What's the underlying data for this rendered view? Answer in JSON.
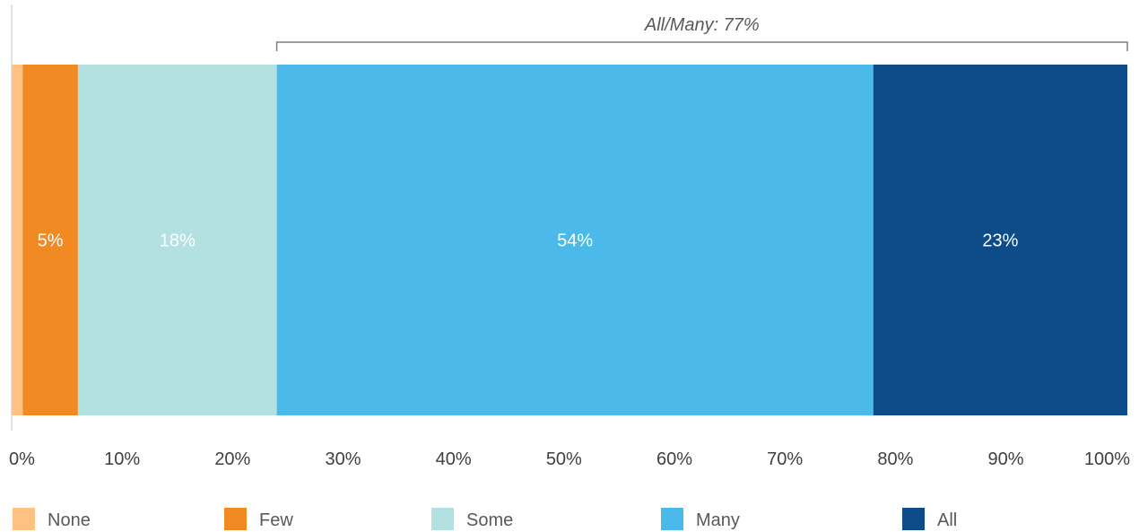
{
  "chart_data": {
    "type": "bar",
    "orientation": "horizontal-stacked-100",
    "series": [
      {
        "name": "None",
        "value": 1,
        "color": "#FFC283",
        "label": ""
      },
      {
        "name": "Few",
        "value": 5,
        "color": "#F28A24",
        "label": "5%"
      },
      {
        "name": "Some",
        "value": 18,
        "color": "#B3E0E0",
        "label": "18%"
      },
      {
        "name": "Many",
        "value": 54,
        "color": "#4BB9EA",
        "label": "54%"
      },
      {
        "name": "All",
        "value": 23,
        "color": "#0E4C89",
        "label": "23%"
      }
    ],
    "xlim": [
      0,
      101
    ],
    "x_ticks": [
      "0%",
      "10%",
      "20%",
      "30%",
      "40%",
      "50%",
      "60%",
      "70%",
      "80%",
      "90%",
      "100%"
    ],
    "annotation": {
      "text": "All/Many: 77%",
      "from": 24,
      "to": 101
    },
    "legend_position": "bottom",
    "grid": false
  }
}
